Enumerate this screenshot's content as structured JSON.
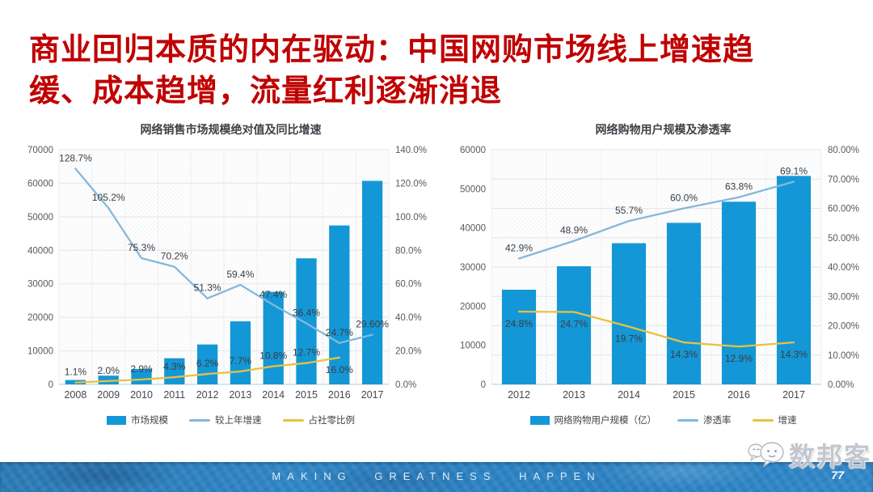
{
  "slide": {
    "title": "商业回归本质的内在驱动：中国网购市场线上增速趋缓、成本趋增，流量红利逐渐消退",
    "title_color": "#c00000",
    "footer_text": "MAKING GREATNESS HAPPEN",
    "page_number": "77",
    "watermark": "数邦客",
    "accent_colors": {
      "bar_blue": "#1497d6",
      "line_blue": "#85b8dc",
      "line_yellow": "#e9c23d"
    }
  },
  "chart_data": [
    {
      "type": "bar",
      "title": "网络销售市场规模绝对值及同比增速",
      "categories": [
        "2008",
        "2009",
        "2010",
        "2011",
        "2012",
        "2013",
        "2014",
        "2015",
        "2016",
        "2017"
      ],
      "left_axis": {
        "min": 0,
        "max": 70000,
        "tick_labels": [
          "0",
          "10000",
          "20000",
          "30000",
          "40000",
          "50000",
          "60000",
          "70000"
        ]
      },
      "right_axis": {
        "min": 0,
        "max": 140,
        "tick_labels": [
          "0.0%",
          "20.0%",
          "40.0%",
          "60.0%",
          "80.0%",
          "100.0%",
          "120.0%",
          "140.0%"
        ]
      },
      "grid": true,
      "legend_position": "bottom",
      "series": [
        {
          "name": "市场规模",
          "type": "bar",
          "axis": "left",
          "color": "#1497d6",
          "values": [
            1300,
            2600,
            4600,
            7800,
            11900,
            18800,
            27600,
            37600,
            47400,
            60700
          ]
        },
        {
          "name": "较上年增速",
          "type": "line",
          "axis": "right",
          "color": "#85b8dc",
          "values": [
            128.7,
            105.2,
            75.3,
            70.2,
            51.3,
            59.4,
            47.4,
            36.4,
            24.7,
            29.6
          ],
          "labels": [
            "128.7%",
            "105.2%",
            "75.3%",
            "70.2%",
            "51.3%",
            "59.4%",
            "47.4%",
            "36.4%",
            "24.7%",
            "29.60%"
          ],
          "label_side": "above"
        },
        {
          "name": "占社零比例",
          "type": "line",
          "axis": "right",
          "color": "#e9c23d",
          "values": [
            1.1,
            2.0,
            2.9,
            4.3,
            6.2,
            7.7,
            10.8,
            12.7,
            16.0
          ],
          "labels": [
            "1.1%",
            "2.0%",
            "2.9%",
            "4.3%",
            "6.2%",
            "7.7%",
            "10.8%",
            "12.7%",
            "16.0%"
          ],
          "label_side": [
            "above",
            "above",
            "above",
            "above",
            "above",
            "above",
            "above",
            "above",
            "below"
          ]
        }
      ]
    },
    {
      "type": "bar",
      "title": "网络购物用户规模及渗透率",
      "categories": [
        "2012",
        "2013",
        "2014",
        "2015",
        "2016",
        "2017"
      ],
      "left_axis": {
        "min": 0,
        "max": 60000,
        "tick_labels": [
          "0",
          "10000",
          "20000",
          "30000",
          "40000",
          "50000",
          "60000"
        ]
      },
      "right_axis": {
        "min": 0,
        "max": 80,
        "tick_labels": [
          "0.00%",
          "10.00%",
          "20.00%",
          "30.00%",
          "40.00%",
          "50.00%",
          "60.00%",
          "70.00%",
          "80.00%"
        ]
      },
      "grid": true,
      "legend_position": "bottom",
      "series": [
        {
          "name": "网络购物用户规模（亿）",
          "type": "bar",
          "axis": "left",
          "color": "#1497d6",
          "values": [
            24200,
            30200,
            36100,
            41300,
            46700,
            53300
          ]
        },
        {
          "name": "渗透率",
          "type": "line",
          "axis": "right",
          "color": "#85b8dc",
          "values": [
            42.9,
            48.9,
            55.7,
            60.0,
            63.8,
            69.1
          ],
          "labels": [
            "42.9%",
            "48.9%",
            "55.7%",
            "60.0%",
            "63.8%",
            "69.1%"
          ],
          "label_side": "above"
        },
        {
          "name": "增速",
          "type": "line",
          "axis": "right",
          "color": "#e9c23d",
          "values": [
            24.8,
            24.7,
            19.7,
            14.3,
            12.9,
            14.3
          ],
          "labels": [
            "24.8%",
            "24.7%",
            "19.7%",
            "14.3%",
            "12.9%",
            "14.3%"
          ],
          "label_side": "below"
        }
      ]
    }
  ]
}
